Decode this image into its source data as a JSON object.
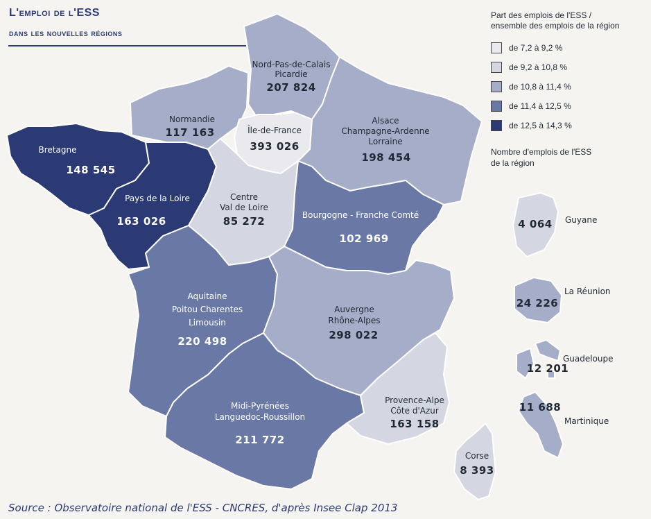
{
  "title": {
    "line1": "L'emploi de l'ESS",
    "line2": "dans les nouvelles régions"
  },
  "legend": {
    "title_line1": "Part des emplois de l'ESS /",
    "title_line2": "ensemble des emplois de la région",
    "classes": [
      {
        "label": "de 7,2 à 9,2 %",
        "color": "#e9e9ee"
      },
      {
        "label": "de 9,2 à 10,8 %",
        "color": "#d4d7e2"
      },
      {
        "label": "de 10,8 à 11,4 %",
        "color": "#a6adc8"
      },
      {
        "label": "de 11,4 à 12,5 %",
        "color": "#6a78a6"
      },
      {
        "label": "de 12,5 à 14,3 %",
        "color": "#2b3a74"
      }
    ],
    "size_title_line1": "Nombre d'emplois de l'ESS",
    "size_title_line2": "de la région"
  },
  "regions": {
    "npdc": {
      "name1": "Nord-Pas-de-Calais",
      "name2": "Picardie",
      "value": "207 824",
      "color": "#a6adc8"
    },
    "normandie": {
      "name1": "Normandie",
      "value": "117 163",
      "color": "#a6adc8"
    },
    "idf": {
      "name1": "Île-de-France",
      "value": "393 026",
      "color": "#e9e9ee"
    },
    "acal": {
      "name1": "Alsace",
      "name2": "Champagne-Ardenne",
      "name3": "Lorraine",
      "value": "198 454",
      "color": "#a6adc8"
    },
    "bretagne": {
      "name1": "Bretagne",
      "value": "148 545",
      "color": "#2b3a74"
    },
    "pdl": {
      "name1": "Pays de la Loire",
      "value": "163 026",
      "color": "#2b3a74"
    },
    "centre": {
      "name1": "Centre",
      "name2": "Val de Loire",
      "value": "85 272",
      "color": "#d4d7e2"
    },
    "bfc": {
      "name1": "Bourgogne - Franche Comté",
      "value": "102 969",
      "color": "#6a78a6"
    },
    "alpc": {
      "name1": "Aquitaine",
      "name2": "Poitou Charentes",
      "name3": "Limousin",
      "value": "220 498",
      "color": "#6a78a6"
    },
    "ara": {
      "name1": "Auvergne",
      "name2": "Rhône-Alpes",
      "value": "298 022",
      "color": "#a6adc8"
    },
    "lrmp": {
      "name1": "Midi-Pyrénées",
      "name2": "Languedoc-Roussillon",
      "value": "211 772",
      "color": "#6a78a6"
    },
    "paca": {
      "name1": "Provence-Alpe",
      "name2": "Côte d'Azur",
      "value": "163 158",
      "color": "#d4d7e2"
    },
    "corse": {
      "name1": "Corse",
      "value": "8 393",
      "color": "#d4d7e2"
    },
    "guyane": {
      "name1": "Guyane",
      "value": "4 064",
      "color": "#d4d7e2"
    },
    "reunion": {
      "name1": "La Réunion",
      "value": "24 226",
      "color": "#a6adc8"
    },
    "guadeloupe": {
      "name1": "Guadeloupe",
      "value": "12 201",
      "color": "#a6adc8"
    },
    "martinique": {
      "name1": "Martinique",
      "value": "11 688",
      "color": "#a6adc8"
    }
  },
  "source": "Source : Observatoire national de l'ESS - CNCRES, d'après Insee Clap 2013"
}
